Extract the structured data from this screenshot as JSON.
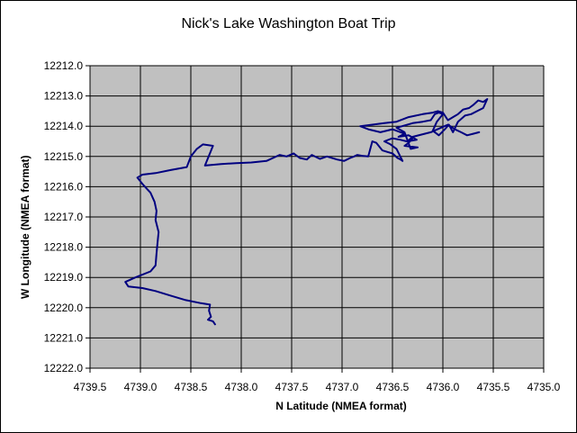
{
  "chart_data": {
    "type": "scatter",
    "title": "Nick's Lake Washington Boat Trip",
    "xlabel": "N Latitude (NMEA format)",
    "ylabel": "W Longitude  (NMEA format)",
    "x_axis": {
      "min": 4735.0,
      "max": 4739.5,
      "step": 0.5,
      "reversed": true,
      "tick_labels": [
        "4739.5",
        "4739.0",
        "4738.5",
        "4738.0",
        "4737.5",
        "4737.0",
        "4736.5",
        "4736.0",
        "4735.5",
        "4735.0"
      ]
    },
    "y_axis": {
      "min": 12212.0,
      "max": 12222.0,
      "step": 1.0,
      "reversed": true,
      "tick_labels": [
        "12212.0",
        "12213.0",
        "12214.0",
        "12215.0",
        "12216.0",
        "12217.0",
        "12218.0",
        "12219.0",
        "12220.0",
        "12221.0",
        "12222.0"
      ]
    },
    "grid": true,
    "legend": "none",
    "colors": {
      "plot_area": "#c0c0c0",
      "series": "#000080",
      "grid": "#000000"
    },
    "series": [
      {
        "x": [
          4738.26,
          4738.28,
          4738.33,
          4738.3,
          4738.32,
          4738.31,
          4738.4,
          4738.55,
          4738.7,
          4738.85,
          4738.98,
          4739.12,
          4739.15,
          4739.05,
          4738.9,
          4738.85,
          4738.84,
          4738.83,
          4738.82,
          4738.85,
          4738.84,
          4738.86,
          4738.9,
          4738.97,
          4739.03,
          4738.98,
          4738.85,
          4738.7,
          4738.54,
          4738.5,
          4738.44,
          4738.38,
          4738.28,
          4738.36,
          4738.2,
          4738.05,
          4737.9,
          4737.75,
          4737.62,
          4737.55,
          4737.48,
          4737.42,
          4737.35,
          4737.3,
          4737.22,
          4737.15,
          4737.05,
          4736.98,
          4736.92,
          4736.88,
          4736.85,
          4736.8,
          4736.74,
          4736.7,
          4736.66,
          4736.6,
          4736.55,
          4736.5,
          4736.45,
          4736.42,
          4736.4,
          4736.46,
          4736.52,
          4736.58,
          4736.5,
          4736.42,
          4736.36,
          4736.3,
          4736.34,
          4736.38,
          4736.25,
          4736.32,
          4736.38,
          4736.46,
          4736.3,
          4736.2,
          4736.12,
          4736.08,
          4736.04,
          4736.0,
          4736.06,
          4736.1,
          4736.04,
          4735.98,
          4735.94,
          4735.9,
          4735.85,
          4735.78,
          4735.72,
          4735.66,
          4735.6,
          4735.56,
          4735.6,
          4735.65,
          4735.7,
          4735.74,
          4735.8,
          4735.85,
          4735.9,
          4735.95,
          4736.0,
          4736.05,
          4736.1,
          4736.2,
          4736.34,
          4736.46,
          4736.58,
          4736.7,
          4736.82,
          4736.74,
          4736.62,
          4736.5,
          4736.38,
          4736.44,
          4736.34,
          4736.26,
          4736.35,
          4736.3,
          4736.12,
          4736.02,
          4735.95,
          4735.88,
          4735.82,
          4735.76,
          4735.7,
          4735.64
        ],
        "y": [
          12220.55,
          12220.45,
          12220.4,
          12220.3,
          12220.1,
          12219.9,
          12219.85,
          12219.75,
          12219.6,
          12219.45,
          12219.35,
          12219.3,
          12219.15,
          12219.0,
          12218.8,
          12218.6,
          12218.2,
          12217.85,
          12217.5,
          12217.1,
          12216.8,
          12216.5,
          12216.2,
          12215.95,
          12215.7,
          12215.6,
          12215.55,
          12215.45,
          12215.35,
          12215.0,
          12214.75,
          12214.6,
          12214.65,
          12215.3,
          12215.25,
          12215.22,
          12215.2,
          12215.15,
          12214.95,
          12215.0,
          12214.9,
          12215.05,
          12215.1,
          12214.95,
          12215.08,
          12215.0,
          12215.1,
          12215.15,
          12215.05,
          12215.0,
          12214.95,
          12214.98,
          12215.0,
          12214.5,
          12214.55,
          12214.8,
          12214.85,
          12214.9,
          12215.05,
          12215.1,
          12215.15,
          12214.75,
          12214.6,
          12214.5,
          12214.4,
          12214.45,
          12214.5,
          12214.4,
          12214.55,
          12214.65,
          12214.7,
          12214.75,
          12214.2,
          12214.05,
          12213.9,
          12213.85,
          12213.8,
          12213.6,
          12213.55,
          12213.6,
          12213.85,
          12214.15,
          12214.3,
          12214.1,
          12213.95,
          12214.2,
          12213.85,
          12213.65,
          12213.6,
          12213.5,
          12213.4,
          12213.1,
          12213.2,
          12213.15,
          12213.3,
          12213.4,
          12213.45,
          12213.6,
          12213.7,
          12213.8,
          12213.55,
          12213.5,
          12213.55,
          12213.6,
          12213.7,
          12213.85,
          12213.9,
          12213.95,
          12214.0,
          12214.1,
          12214.2,
          12214.1,
          12214.25,
          12214.35,
          12214.3,
          12214.45,
          12214.5,
          12214.35,
          12214.2,
          12214.05,
          12213.95,
          12214.1,
          12214.2,
          12214.3,
          12214.25,
          12214.2
        ]
      }
    ]
  }
}
